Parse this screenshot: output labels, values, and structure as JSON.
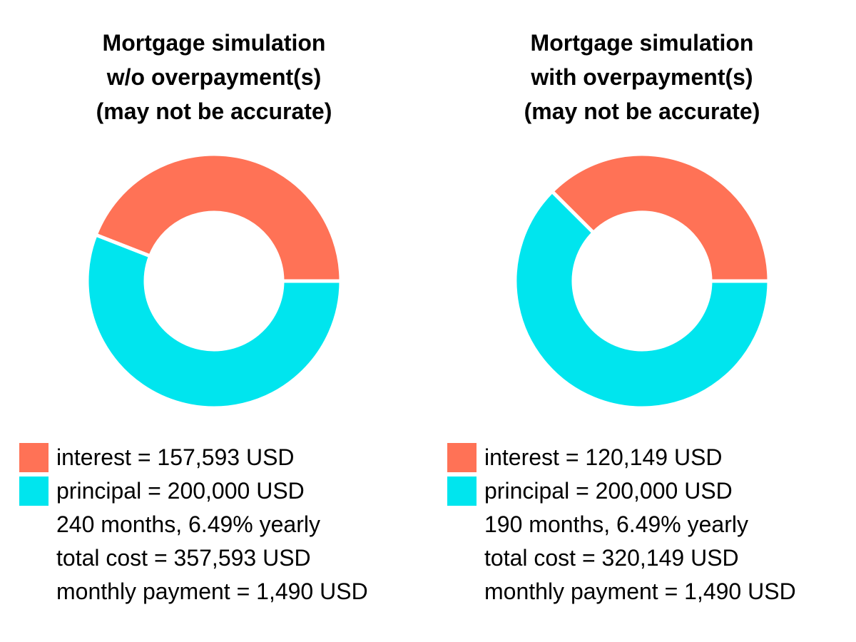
{
  "colors": {
    "interest": "#ff7256",
    "principal": "#00e5ee",
    "background": "#ffffff"
  },
  "chart_data": [
    {
      "type": "pie",
      "variant": "donut",
      "title_lines": [
        "Mortgage simulation",
        "w/o overpayment(s)",
        "(may not be accurate)"
      ],
      "slices": [
        {
          "label": "interest",
          "value": 157593,
          "legend_text": "interest = 157,593 USD"
        },
        {
          "label": "principal",
          "value": 200000,
          "legend_text": "principal = 200,000 USD"
        }
      ],
      "info_lines": [
        "240 months, 6.49% yearly",
        "total cost = 357,593 USD",
        "monthly payment = 1,490 USD"
      ]
    },
    {
      "type": "pie",
      "variant": "donut",
      "title_lines": [
        "Mortgage simulation",
        "with overpayment(s)",
        "(may not be accurate)"
      ],
      "slices": [
        {
          "label": "interest",
          "value": 120149,
          "legend_text": "interest = 120,149 USD"
        },
        {
          "label": "principal",
          "value": 200000,
          "legend_text": "principal = 200,000 USD"
        }
      ],
      "info_lines": [
        "190 months, 6.49% yearly",
        "total cost = 320,149 USD",
        "monthly payment = 1,490 USD"
      ]
    }
  ]
}
